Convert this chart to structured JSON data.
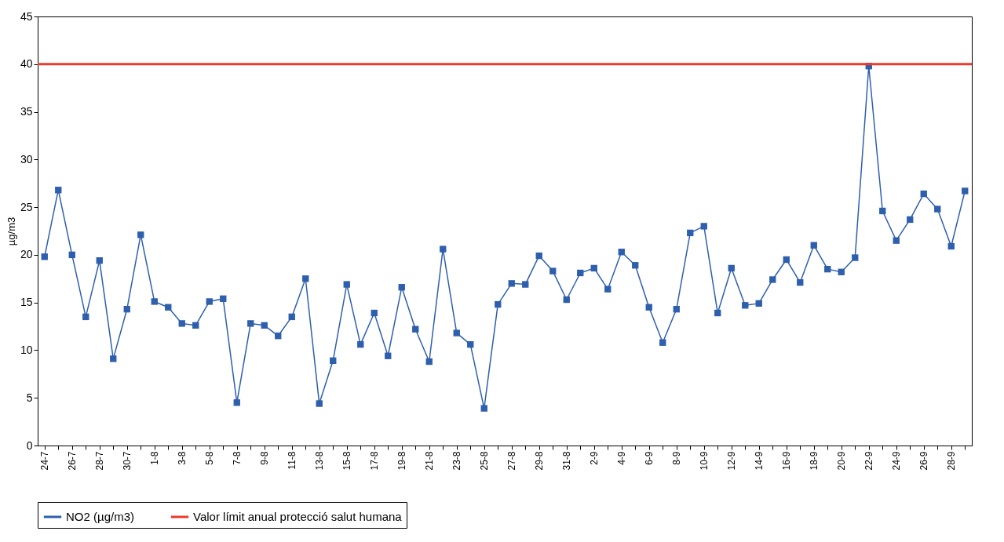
{
  "chart_data": {
    "type": "line",
    "ylabel": "µg/m3",
    "categories": [
      "24-7",
      null,
      "26-7",
      null,
      "28-7",
      null,
      "30-7",
      null,
      "1-8",
      null,
      "3-8",
      null,
      "5-8",
      null,
      "7-8",
      null,
      "9-8",
      null,
      "11-8",
      null,
      "13-8",
      null,
      "15-8",
      null,
      "17-8",
      null,
      "19-8",
      null,
      "21-8",
      null,
      "23-8",
      null,
      "25-8",
      null,
      "27-8",
      null,
      "29-8",
      null,
      "31-8",
      null,
      "2-9",
      null,
      "4-9",
      null,
      "6-9",
      null,
      "8-9",
      null,
      "10-9",
      null,
      "12-9",
      null,
      "14-9",
      null,
      "16-9",
      null,
      "18-9",
      null,
      "20-9",
      null,
      "22-9",
      null,
      "24-9",
      null,
      "26-9",
      null,
      "28-9",
      null
    ],
    "series": [
      {
        "name": "NO2 (µg/m3)",
        "color": "#2e5fad",
        "values": [
          19.8,
          26.8,
          20.0,
          13.5,
          19.4,
          9.1,
          14.3,
          22.1,
          15.1,
          14.5,
          12.8,
          12.6,
          15.1,
          15.4,
          4.5,
          12.8,
          12.6,
          11.5,
          13.5,
          17.5,
          4.4,
          8.9,
          16.9,
          10.6,
          13.9,
          9.4,
          16.6,
          12.2,
          8.8,
          20.6,
          11.8,
          10.6,
          3.9,
          14.8,
          17.0,
          16.9,
          19.9,
          18.3,
          15.3,
          18.1,
          18.6,
          16.4,
          20.3,
          18.9,
          14.5,
          10.8,
          14.3,
          22.3,
          23.0,
          13.9,
          18.6,
          14.7,
          14.9,
          17.4,
          19.5,
          17.1,
          21.0,
          18.5,
          18.2,
          19.7,
          39.8,
          24.6,
          21.5,
          23.7,
          26.4,
          24.8,
          20.9,
          26.7
        ]
      }
    ],
    "ref_lines": [
      {
        "axis": "y",
        "value": 40,
        "label": "Valor límit anual protecció salut humana",
        "color": "#ee3a2c"
      }
    ],
    "ylim": [
      0,
      45
    ],
    "yticks": [
      0,
      5,
      10,
      15,
      20,
      25,
      30,
      35,
      40,
      45
    ],
    "grid": false,
    "legend": "bottom",
    "marker": "square",
    "line_style": "solid"
  }
}
